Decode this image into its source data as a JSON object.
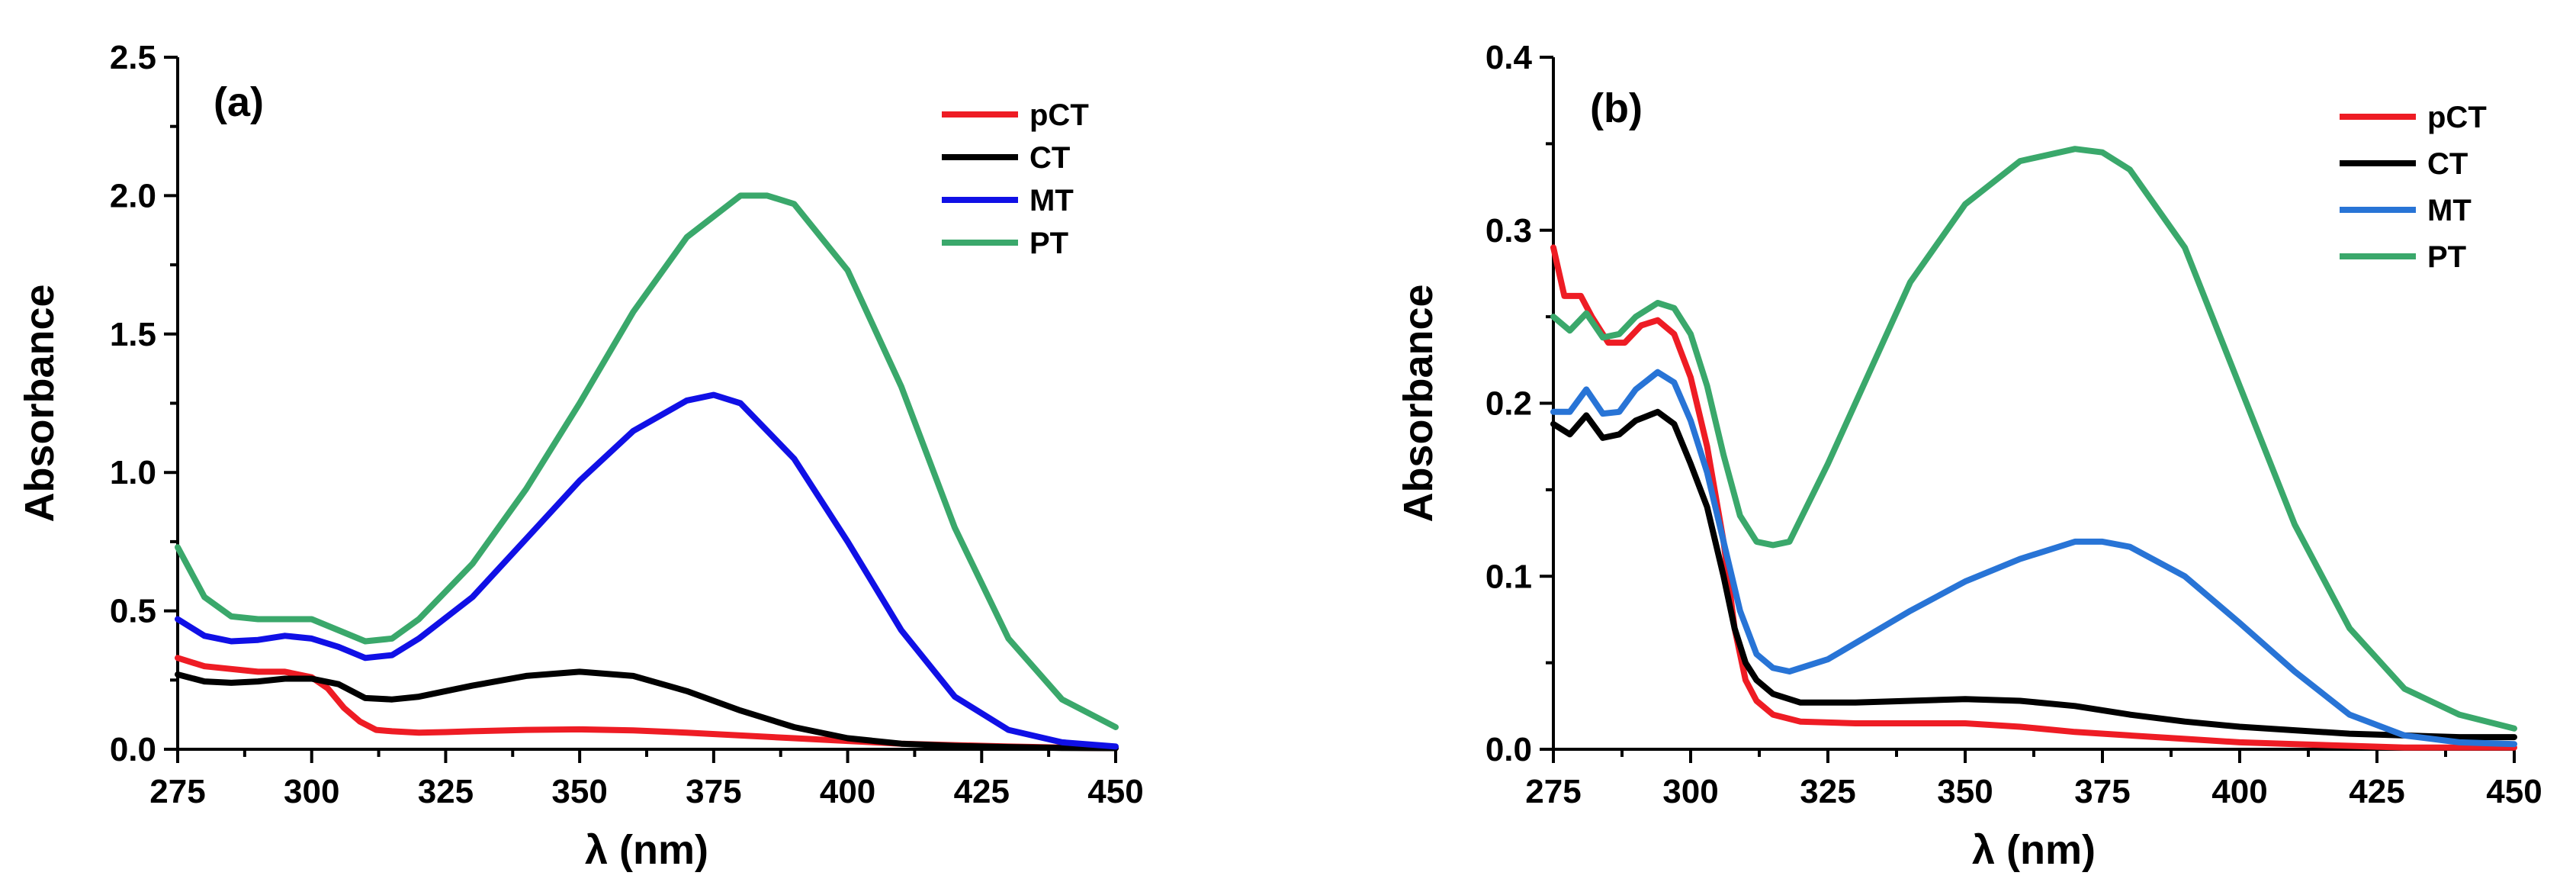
{
  "colors": {
    "pCT": "#ee1c24",
    "CT": "#000000",
    "MT_a": "#1010e6",
    "MT_b": "#2874d6",
    "PT": "#3aa86b"
  },
  "chart_data": [
    {
      "type": "line",
      "panel_label": "(a)",
      "title": "",
      "xlabel": "λ (nm)",
      "ylabel": "Absorbance",
      "xlim": [
        275,
        450
      ],
      "ylim": [
        0,
        2.5
      ],
      "xticks": [
        275,
        300,
        325,
        350,
        375,
        400,
        425,
        450
      ],
      "yticks": [
        0.0,
        0.5,
        1.0,
        1.5,
        2.0,
        2.5
      ],
      "xtick_labels": [
        "275",
        "300",
        "325",
        "350",
        "375",
        "400",
        "425",
        "450"
      ],
      "ytick_labels": [
        "0.0",
        "0.5",
        "1.0",
        "1.5",
        "2.0",
        "2.5"
      ],
      "grid": false,
      "legend_position": "top-right",
      "series": [
        {
          "name": "pCT",
          "color": "#ee1c24",
          "x": [
            275,
            280,
            285,
            290,
            295,
            300,
            303,
            306,
            309,
            312,
            315,
            320,
            325,
            330,
            340,
            350,
            360,
            370,
            380,
            390,
            400,
            410,
            420,
            430,
            440,
            450
          ],
          "y": [
            0.33,
            0.3,
            0.29,
            0.28,
            0.28,
            0.26,
            0.22,
            0.15,
            0.1,
            0.07,
            0.065,
            0.06,
            0.062,
            0.065,
            0.07,
            0.072,
            0.068,
            0.06,
            0.05,
            0.04,
            0.03,
            0.02,
            0.015,
            0.01,
            0.006,
            0.004
          ]
        },
        {
          "name": "CT",
          "color": "#000000",
          "x": [
            275,
            280,
            285,
            290,
            295,
            300,
            305,
            310,
            315,
            320,
            330,
            340,
            350,
            360,
            370,
            380,
            390,
            400,
            410,
            420,
            430,
            440,
            450
          ],
          "y": [
            0.27,
            0.245,
            0.24,
            0.245,
            0.255,
            0.255,
            0.235,
            0.185,
            0.18,
            0.19,
            0.23,
            0.265,
            0.28,
            0.265,
            0.21,
            0.14,
            0.08,
            0.04,
            0.02,
            0.012,
            0.008,
            0.005,
            0.004
          ]
        },
        {
          "name": "MT",
          "color": "#1010e6",
          "x": [
            275,
            280,
            285,
            290,
            295,
            300,
            305,
            310,
            315,
            320,
            330,
            340,
            350,
            360,
            370,
            375,
            380,
            390,
            400,
            410,
            420,
            430,
            440,
            450
          ],
          "y": [
            0.47,
            0.41,
            0.39,
            0.395,
            0.41,
            0.4,
            0.37,
            0.33,
            0.34,
            0.4,
            0.55,
            0.76,
            0.97,
            1.15,
            1.26,
            1.28,
            1.25,
            1.05,
            0.75,
            0.43,
            0.19,
            0.07,
            0.025,
            0.01
          ]
        },
        {
          "name": "PT",
          "color": "#3aa86b",
          "x": [
            275,
            280,
            285,
            290,
            295,
            300,
            305,
            310,
            315,
            320,
            330,
            340,
            350,
            360,
            370,
            380,
            385,
            390,
            400,
            410,
            420,
            430,
            440,
            450
          ],
          "y": [
            0.73,
            0.55,
            0.48,
            0.47,
            0.47,
            0.47,
            0.43,
            0.39,
            0.4,
            0.47,
            0.67,
            0.94,
            1.25,
            1.58,
            1.85,
            2.0,
            2.0,
            1.97,
            1.73,
            1.31,
            0.8,
            0.4,
            0.18,
            0.08
          ]
        }
      ]
    },
    {
      "type": "line",
      "panel_label": "(b)",
      "title": "",
      "xlabel": "λ (nm)",
      "ylabel": "Absorbance",
      "xlim": [
        275,
        450
      ],
      "ylim": [
        0,
        0.4
      ],
      "xticks": [
        275,
        300,
        325,
        350,
        375,
        400,
        425,
        450
      ],
      "yticks": [
        0.0,
        0.1,
        0.2,
        0.3,
        0.4
      ],
      "xtick_labels": [
        "275",
        "300",
        "325",
        "350",
        "375",
        "400",
        "425",
        "450"
      ],
      "ytick_labels": [
        "0.0",
        "0.1",
        "0.2",
        "0.3",
        "0.4"
      ],
      "grid": false,
      "legend_position": "top-right",
      "series": [
        {
          "name": "pCT",
          "color": "#ee1c24",
          "x": [
            275,
            277,
            280,
            282,
            285,
            288,
            291,
            294,
            297,
            300,
            303,
            306,
            308,
            310,
            312,
            315,
            320,
            330,
            340,
            350,
            360,
            370,
            380,
            390,
            400,
            410,
            420,
            430,
            440,
            450
          ],
          "y": [
            0.29,
            0.262,
            0.262,
            0.25,
            0.235,
            0.235,
            0.245,
            0.248,
            0.24,
            0.215,
            0.175,
            0.12,
            0.07,
            0.04,
            0.028,
            0.02,
            0.016,
            0.015,
            0.015,
            0.015,
            0.013,
            0.01,
            0.008,
            0.006,
            0.004,
            0.003,
            0.002,
            0.001,
            0.001,
            0.001
          ]
        },
        {
          "name": "CT",
          "color": "#000000",
          "x": [
            275,
            278,
            281,
            284,
            287,
            290,
            294,
            297,
            300,
            303,
            306,
            308,
            310,
            312,
            315,
            320,
            330,
            340,
            350,
            360,
            370,
            380,
            390,
            400,
            410,
            420,
            430,
            440,
            450
          ],
          "y": [
            0.188,
            0.182,
            0.193,
            0.18,
            0.182,
            0.19,
            0.195,
            0.188,
            0.165,
            0.14,
            0.1,
            0.07,
            0.05,
            0.04,
            0.032,
            0.027,
            0.027,
            0.028,
            0.029,
            0.028,
            0.025,
            0.02,
            0.016,
            0.013,
            0.011,
            0.009,
            0.008,
            0.007,
            0.007
          ]
        },
        {
          "name": "MT",
          "color": "#2874d6",
          "x": [
            275,
            278,
            281,
            284,
            287,
            290,
            294,
            297,
            300,
            303,
            306,
            309,
            312,
            315,
            318,
            325,
            340,
            350,
            360,
            370,
            375,
            380,
            390,
            400,
            410,
            420,
            430,
            440,
            450
          ],
          "y": [
            0.195,
            0.195,
            0.208,
            0.194,
            0.195,
            0.208,
            0.218,
            0.212,
            0.19,
            0.16,
            0.12,
            0.08,
            0.055,
            0.047,
            0.045,
            0.052,
            0.08,
            0.097,
            0.11,
            0.12,
            0.12,
            0.117,
            0.1,
            0.073,
            0.045,
            0.02,
            0.008,
            0.004,
            0.003
          ]
        },
        {
          "name": "PT",
          "color": "#3aa86b",
          "x": [
            275,
            278,
            281,
            284,
            287,
            290,
            294,
            297,
            300,
            303,
            306,
            309,
            312,
            315,
            318,
            325,
            340,
            350,
            360,
            370,
            375,
            380,
            390,
            400,
            410,
            420,
            430,
            440,
            450
          ],
          "y": [
            0.25,
            0.242,
            0.252,
            0.238,
            0.24,
            0.25,
            0.258,
            0.255,
            0.24,
            0.21,
            0.17,
            0.135,
            0.12,
            0.118,
            0.12,
            0.165,
            0.27,
            0.315,
            0.34,
            0.347,
            0.345,
            0.335,
            0.29,
            0.21,
            0.13,
            0.07,
            0.035,
            0.02,
            0.012
          ]
        }
      ]
    }
  ]
}
